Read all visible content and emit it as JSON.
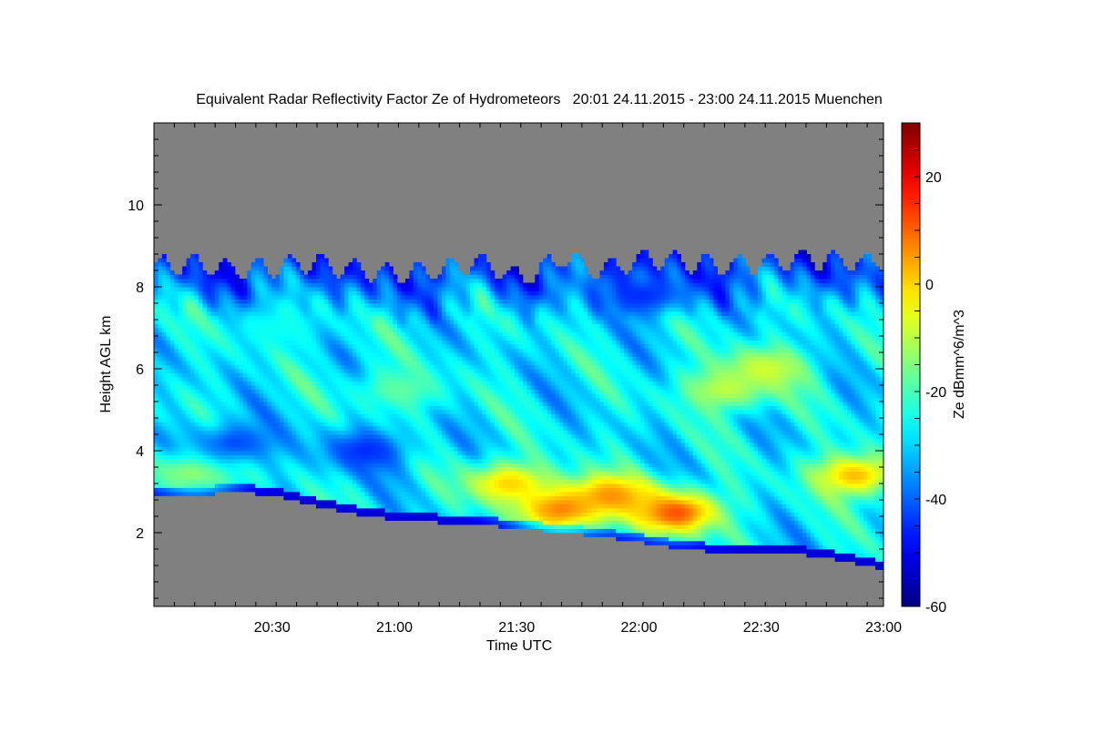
{
  "chart_data": {
    "type": "heatmap",
    "title": "Equivalent Radar Reflectivity Factor Ze of Hydrometeors   20:01 24.11.2015 - 23:00 24.11.2015 Muenchen",
    "xlabel": "Time UTC",
    "ylabel": "Height AGL km",
    "colorbar_label": "Ze dBmm^6/m^3",
    "x_range_minutes": [
      0,
      179
    ],
    "x_start_clock": "20:01",
    "x_ticks": [
      {
        "label": "20:30",
        "minute": 29
      },
      {
        "label": "21:00",
        "minute": 59
      },
      {
        "label": "21:30",
        "minute": 89
      },
      {
        "label": "22:00",
        "minute": 119
      },
      {
        "label": "22:30",
        "minute": 149
      },
      {
        "label": "23:00",
        "minute": 179
      }
    ],
    "ylim": [
      0.2,
      12.0
    ],
    "y_ticks": [
      2,
      4,
      6,
      8,
      10
    ],
    "clim": [
      -60,
      30
    ],
    "colorbar_ticks": [
      20,
      0,
      -20,
      -40,
      -60
    ],
    "no_data_color": "#808080",
    "colormap": "jet",
    "cloud_base_km": [
      [
        0,
        3.0
      ],
      [
        10,
        2.95
      ],
      [
        20,
        3.05
      ],
      [
        30,
        2.95
      ],
      [
        40,
        2.7
      ],
      [
        50,
        2.5
      ],
      [
        60,
        2.35
      ],
      [
        70,
        2.3
      ],
      [
        80,
        2.25
      ],
      [
        90,
        2.15
      ],
      [
        100,
        2.05
      ],
      [
        110,
        1.95
      ],
      [
        120,
        1.8
      ],
      [
        130,
        1.65
      ],
      [
        140,
        1.55
      ],
      [
        150,
        1.55
      ],
      [
        160,
        1.5
      ],
      [
        170,
        1.35
      ],
      [
        179,
        1.15
      ]
    ],
    "cloud_top_km": [
      [
        0,
        8.5
      ],
      [
        10,
        8.6
      ],
      [
        20,
        8.4
      ],
      [
        30,
        8.5
      ],
      [
        40,
        8.6
      ],
      [
        50,
        8.4
      ],
      [
        60,
        8.3
      ],
      [
        70,
        8.4
      ],
      [
        80,
        8.6
      ],
      [
        90,
        8.2
      ],
      [
        100,
        8.7
      ],
      [
        110,
        8.4
      ],
      [
        120,
        8.7
      ],
      [
        130,
        8.6
      ],
      [
        140,
        8.5
      ],
      [
        150,
        8.6
      ],
      [
        160,
        8.7
      ],
      [
        170,
        8.6
      ],
      [
        179,
        8.6
      ]
    ],
    "reflectivity_features_dbz": [
      {
        "minute": 100,
        "height_km": 2.6,
        "ze": 8
      },
      {
        "minute": 128,
        "height_km": 2.5,
        "ze": 12
      },
      {
        "minute": 112,
        "height_km": 2.9,
        "ze": 6
      },
      {
        "minute": 87,
        "height_km": 3.2,
        "ze": 0
      },
      {
        "minute": 172,
        "height_km": 3.4,
        "ze": 2
      },
      {
        "minute": 10,
        "height_km": 3.5,
        "ze": -12
      },
      {
        "minute": 140,
        "height_km": 5.5,
        "ze": -10
      },
      {
        "minute": 150,
        "height_km": 6.0,
        "ze": -8
      },
      {
        "minute": 60,
        "height_km": 5.5,
        "ze": -18
      },
      {
        "minute": 20,
        "height_km": 4.2,
        "ze": -42
      },
      {
        "minute": 52,
        "height_km": 4.0,
        "ze": -45
      },
      {
        "minute": 120,
        "height_km": 7.8,
        "ze": -45
      },
      {
        "minute": 30,
        "height_km": 7.0,
        "ze": -25
      }
    ]
  }
}
